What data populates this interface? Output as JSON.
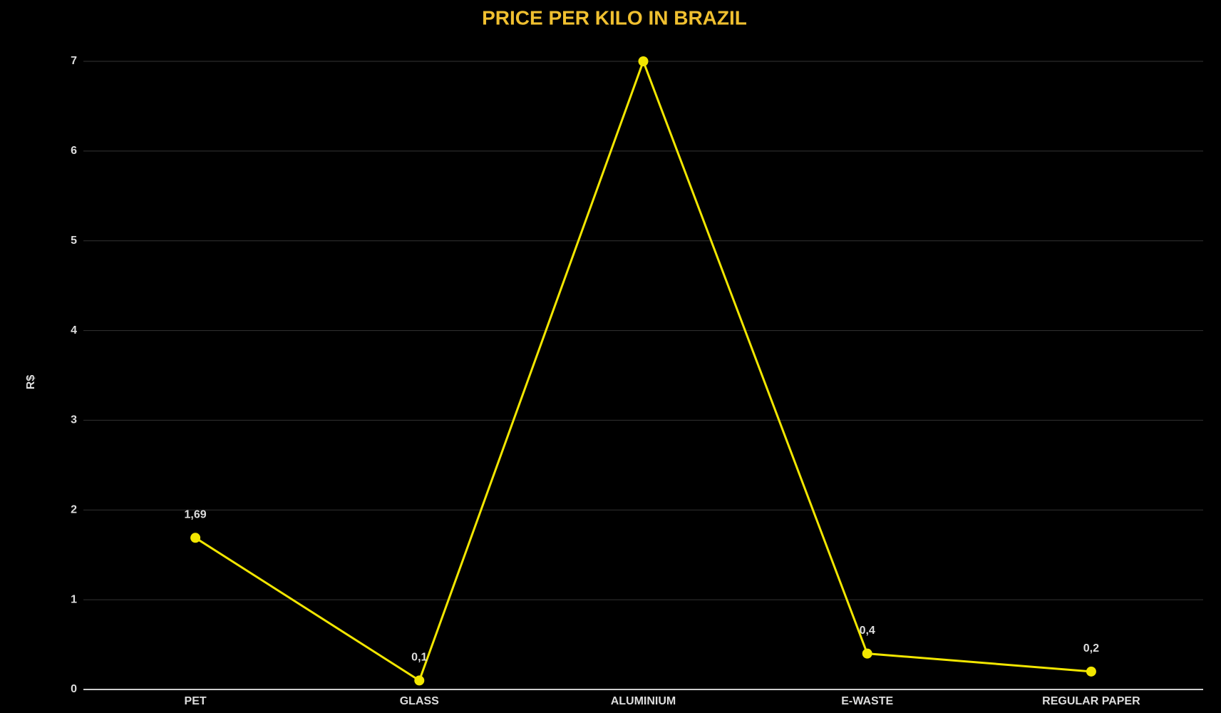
{
  "chart_data": {
    "type": "line",
    "title": "PRICE PER KILO IN BRAZIL",
    "y_label": "R$",
    "categories": [
      "PET",
      "GLASS",
      "ALUMINIUM",
      "E-WASTE",
      "REGULAR PAPER"
    ],
    "values": [
      1.69,
      0.1,
      7,
      0.4,
      0.2
    ],
    "value_labels": [
      "1,69",
      "0,1",
      null,
      "0,4",
      "0,2"
    ],
    "color": "#f2e600",
    "ylim": [
      0,
      7
    ],
    "yticks": [
      0,
      1,
      2,
      3,
      4,
      5,
      6,
      7
    ],
    "grid": true
  }
}
